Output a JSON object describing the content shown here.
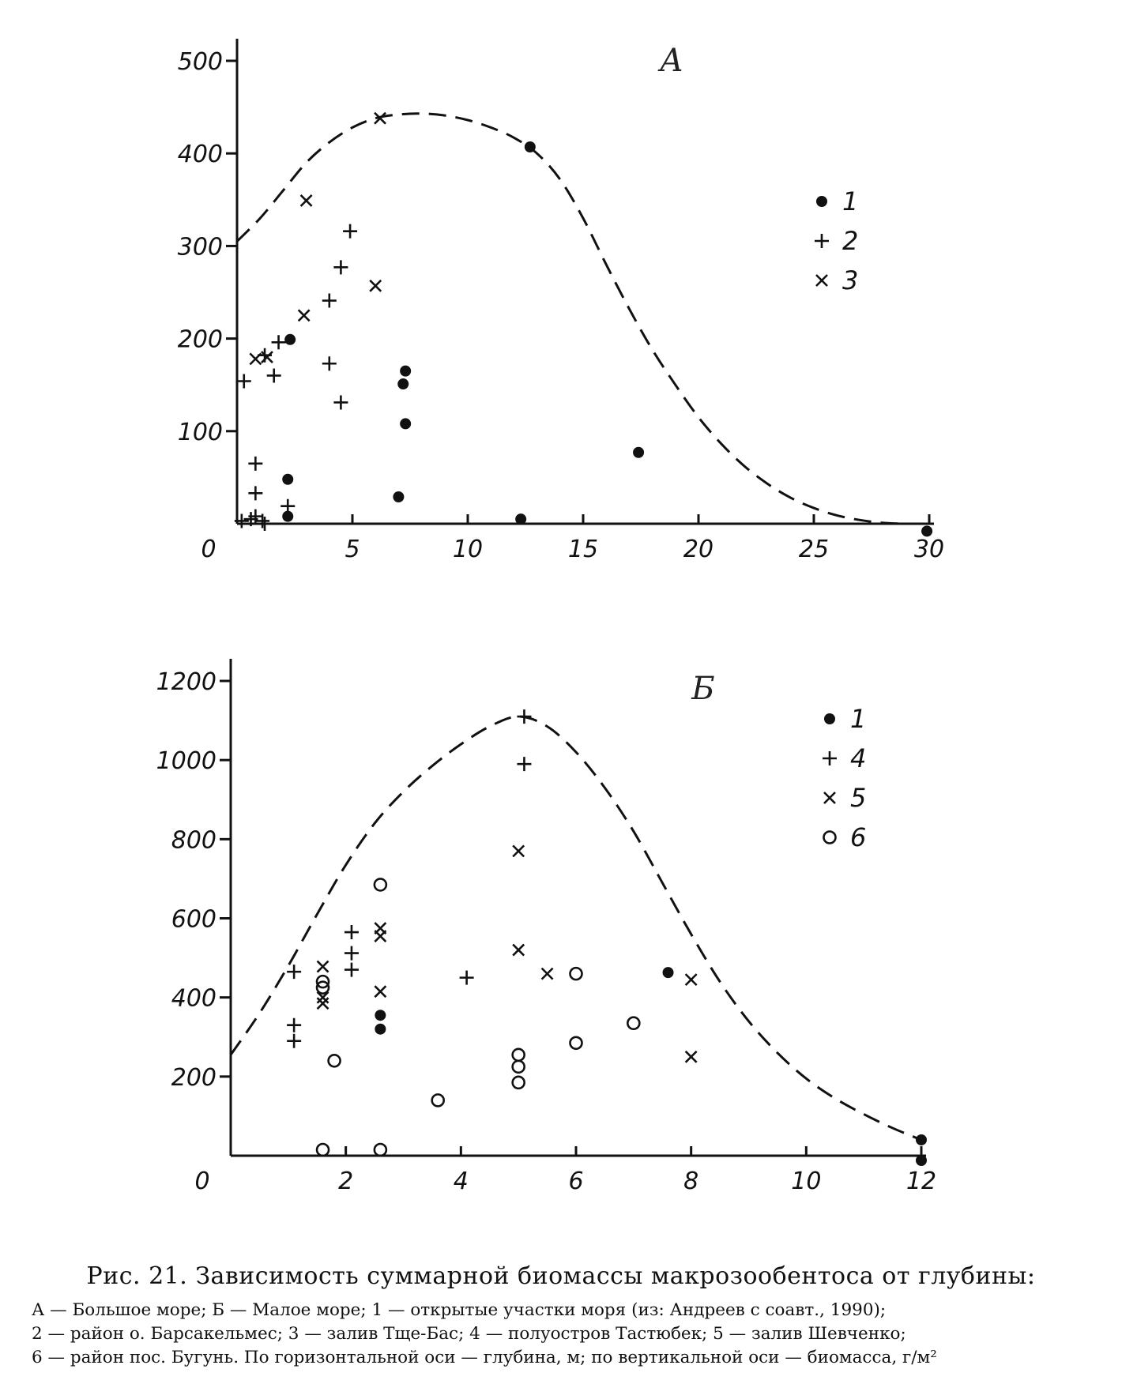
{
  "caption": {
    "title": "Рис. 21. Зависимость суммарной биомассы макрозообентоса от глубины:",
    "lines": [
      "А — Большое море; Б — Малое море; 1 — открытые участки моря (из: Андреев с соавт., 1990);",
      "2 — район о. Барсакельмес; 3 — залив Тще-Бас; 4 — полуостров Тастюбек; 5 — залив Шевченко;",
      "6 — район пос. Бугунь. По горизонтальной оси — глубина, м; по вертикальной оси — биомасса, г/м²"
    ]
  },
  "chart_data": [
    {
      "type": "scatter",
      "panel_label": "А",
      "xlabel": "",
      "ylabel": "",
      "xlim": [
        0,
        30
      ],
      "ylim": [
        0,
        500
      ],
      "x_ticks": [
        0,
        5,
        10,
        15,
        20,
        25,
        30
      ],
      "y_ticks": [
        100,
        200,
        300,
        400,
        500
      ],
      "grid": false,
      "legend_position": "right",
      "series": [
        {
          "name": "1",
          "marker": "filled-circle",
          "points": [
            [
              2.2,
              48
            ],
            [
              2.2,
              8
            ],
            [
              2.3,
              199
            ],
            [
              7.3,
              165
            ],
            [
              7.2,
              151
            ],
            [
              7.3,
              108
            ],
            [
              7.0,
              29
            ],
            [
              12.7,
              407
            ],
            [
              12.3,
              5
            ],
            [
              17.4,
              77
            ],
            [
              29.9,
              -8
            ]
          ]
        },
        {
          "name": "2",
          "marker": "plus",
          "points": [
            [
              0.3,
              154
            ],
            [
              0.2,
              3
            ],
            [
              0.6,
              5
            ],
            [
              0.8,
              65
            ],
            [
              0.8,
              33
            ],
            [
              0.8,
              8
            ],
            [
              1.1,
              3
            ],
            [
              1.2,
              0
            ],
            [
              1.2,
              182
            ],
            [
              1.6,
              160
            ],
            [
              1.8,
              196
            ],
            [
              2.2,
              19
            ],
            [
              4.0,
              241
            ],
            [
              4.0,
              173
            ],
            [
              4.5,
              277
            ],
            [
              4.5,
              131
            ],
            [
              4.9,
              316
            ]
          ]
        },
        {
          "name": "3",
          "marker": "cross",
          "points": [
            [
              0.8,
              178
            ],
            [
              1.3,
              180
            ],
            [
              3.0,
              349
            ],
            [
              2.9,
              225
            ],
            [
              6.0,
              257
            ],
            [
              6.2,
              438
            ]
          ]
        }
      ],
      "envelope": {
        "style": "dashed",
        "points": [
          [
            0,
            305
          ],
          [
            1,
            330
          ],
          [
            2,
            360
          ],
          [
            3,
            390
          ],
          [
            4,
            412
          ],
          [
            5,
            428
          ],
          [
            6,
            438
          ],
          [
            7,
            442
          ],
          [
            8,
            443
          ],
          [
            9,
            441
          ],
          [
            10,
            436
          ],
          [
            11,
            428
          ],
          [
            12,
            417
          ],
          [
            13,
            400
          ],
          [
            14,
            372
          ],
          [
            15,
            330
          ],
          [
            16,
            280
          ],
          [
            17,
            232
          ],
          [
            18,
            188
          ],
          [
            19,
            150
          ],
          [
            20,
            115
          ],
          [
            21,
            86
          ],
          [
            22,
            62
          ],
          [
            23,
            43
          ],
          [
            24,
            28
          ],
          [
            25,
            17
          ],
          [
            26,
            9
          ],
          [
            27,
            4
          ],
          [
            28,
            1
          ],
          [
            29,
            0
          ]
        ]
      }
    },
    {
      "type": "scatter",
      "panel_label": "Б",
      "xlabel": "",
      "ylabel": "",
      "xlim": [
        0,
        12
      ],
      "ylim": [
        0,
        1200
      ],
      "x_ticks": [
        0,
        2,
        4,
        6,
        8,
        10,
        12
      ],
      "y_ticks": [
        200,
        400,
        600,
        800,
        1000,
        1200
      ],
      "grid": false,
      "legend_position": "top-right",
      "series": [
        {
          "name": "1",
          "marker": "filled-circle",
          "points": [
            [
              2.6,
              355
            ],
            [
              2.6,
              320
            ],
            [
              7.6,
              463
            ],
            [
              12.0,
              40
            ],
            [
              12.0,
              -12
            ]
          ]
        },
        {
          "name": "4",
          "marker": "plus",
          "points": [
            [
              1.1,
              465
            ],
            [
              1.1,
              330
            ],
            [
              1.1,
              290
            ],
            [
              2.1,
              565
            ],
            [
              2.1,
              512
            ],
            [
              2.1,
              470
            ],
            [
              4.1,
              450
            ],
            [
              5.1,
              1110
            ],
            [
              5.1,
              990
            ]
          ]
        },
        {
          "name": "5",
          "marker": "cross",
          "points": [
            [
              1.6,
              478
            ],
            [
              1.6,
              400
            ],
            [
              1.6,
              385
            ],
            [
              2.6,
              575
            ],
            [
              2.6,
              555
            ],
            [
              2.6,
              415
            ],
            [
              5.0,
              770
            ],
            [
              5.0,
              520
            ],
            [
              5.5,
              460
            ],
            [
              8.0,
              445
            ],
            [
              8.0,
              250
            ]
          ]
        },
        {
          "name": "6",
          "marker": "open-circle",
          "points": [
            [
              1.6,
              440
            ],
            [
              1.6,
              425
            ],
            [
              1.6,
              15
            ],
            [
              1.8,
              240
            ],
            [
              2.6,
              685
            ],
            [
              2.6,
              15
            ],
            [
              3.6,
              140
            ],
            [
              5.0,
              255
            ],
            [
              5.0,
              225
            ],
            [
              5.0,
              185
            ],
            [
              6.0,
              460
            ],
            [
              6.0,
              285
            ],
            [
              7.0,
              335
            ]
          ]
        }
      ],
      "envelope": {
        "style": "dashed",
        "points": [
          [
            0,
            255
          ],
          [
            0.5,
            360
          ],
          [
            1,
            480
          ],
          [
            1.5,
            610
          ],
          [
            2,
            735
          ],
          [
            2.5,
            840
          ],
          [
            3,
            920
          ],
          [
            3.5,
            985
          ],
          [
            4,
            1040
          ],
          [
            4.5,
            1085
          ],
          [
            5,
            1110
          ],
          [
            5.5,
            1085
          ],
          [
            6,
            1020
          ],
          [
            6.5,
            930
          ],
          [
            7,
            820
          ],
          [
            7.5,
            690
          ],
          [
            8,
            560
          ],
          [
            8.5,
            440
          ],
          [
            9,
            340
          ],
          [
            9.5,
            260
          ],
          [
            10,
            195
          ],
          [
            10.5,
            145
          ],
          [
            11,
            105
          ],
          [
            11.5,
            70
          ],
          [
            12,
            40
          ]
        ]
      }
    }
  ]
}
